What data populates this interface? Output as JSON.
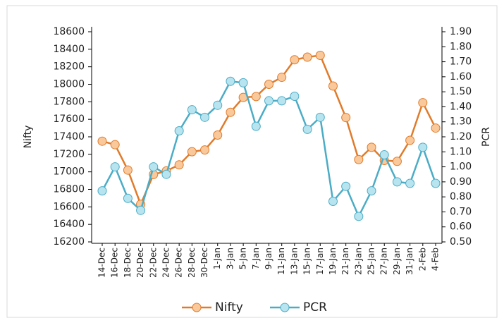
{
  "chart_data": {
    "type": "line",
    "categories": [
      "14-Dec",
      "16-Dec",
      "18-Dec",
      "20-Dec",
      "22-Dec",
      "24-Dec",
      "26-Dec",
      "28-Dec",
      "30-Dec",
      "1-Jan",
      "3-Jan",
      "5-Jan",
      "7-Jan",
      "9-Jan",
      "11-Jan",
      "13-Jan",
      "15-Jan",
      "17-Jan",
      "19-Jan",
      "21-Jan",
      "23-Jan",
      "25-Jan",
      "27-Jan",
      "29-Jan",
      "31-Jan",
      "2-Feb",
      "4-Feb"
    ],
    "series": [
      {
        "name": "Nifty",
        "color": "#e07b2a",
        "marker_color": "#f9c89b",
        "values": [
          17350,
          17310,
          17020,
          16630,
          16970,
          17010,
          17080,
          17230,
          17250,
          17420,
          17680,
          17850,
          17860,
          18000,
          18080,
          18280,
          18310,
          18330,
          17980,
          17620,
          17140,
          17280,
          17130,
          17120,
          17360,
          17790,
          17500
        ]
      },
      {
        "name": "PCR",
        "color": "#4bacc6",
        "marker_color": "#b8e4ef",
        "axis": "y2",
        "values": [
          0.84,
          1.0,
          0.79,
          0.71,
          1.0,
          0.95,
          1.24,
          1.38,
          1.33,
          1.41,
          1.57,
          1.56,
          1.27,
          1.44,
          1.44,
          1.47,
          1.25,
          1.33,
          0.77,
          0.87,
          0.67,
          0.84,
          1.08,
          0.9,
          0.89,
          1.13,
          0.89
        ]
      }
    ],
    "y_label": "Nifty",
    "y2_label": "PCR",
    "ylim": [
      16200,
      18600
    ],
    "yticks": [
      16200,
      16400,
      16600,
      16800,
      17000,
      17200,
      17400,
      17600,
      17800,
      18000,
      18200,
      18400,
      18600
    ],
    "y2lim": [
      0.5,
      1.9
    ],
    "y2ticks": [
      {
        "value": 0.5,
        "label": "0.50"
      },
      {
        "value": 0.6,
        "label": "0.60"
      },
      {
        "value": 0.7,
        "label": "0.70"
      },
      {
        "value": 0.8,
        "label": "0.80"
      },
      {
        "value": 0.9,
        "label": "0.90"
      },
      {
        "value": 1.0,
        "label": "1.00"
      },
      {
        "value": 1.1,
        "label": "1.10"
      },
      {
        "value": 1.2,
        "label": "1.20"
      },
      {
        "value": 1.3,
        "label": "1.30"
      },
      {
        "value": 1.4,
        "label": "1.40"
      },
      {
        "value": 1.5,
        "label": "1.50"
      },
      {
        "value": 1.6,
        "label": "1.60"
      },
      {
        "value": 1.7,
        "label": "1.70"
      },
      {
        "value": 1.8,
        "label": "1.80"
      },
      {
        "value": 1.9,
        "label": "1.90"
      }
    ],
    "legend": "bottom"
  }
}
